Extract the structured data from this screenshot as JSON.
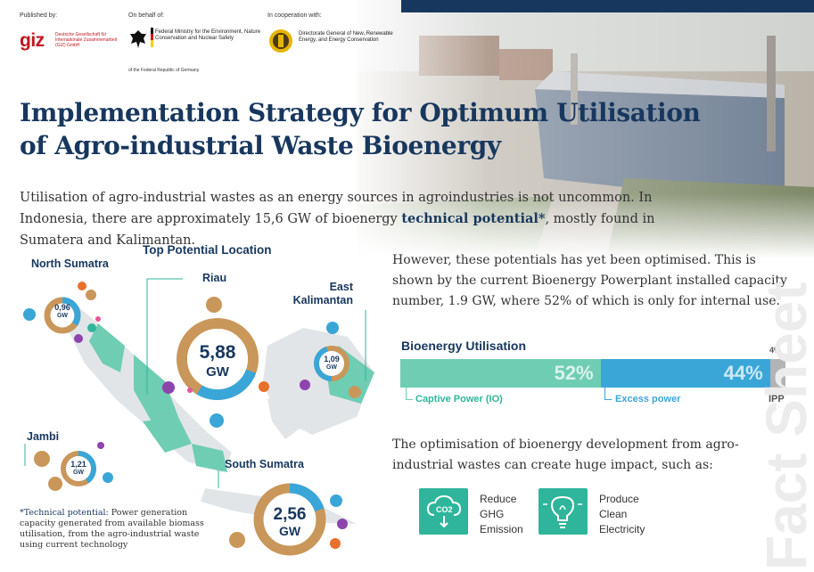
{
  "logos": {
    "published_by": "Published by:",
    "giz": "giz",
    "giz_sub": "Deutsche Gesellschaft für Internationale Zusammenarbeit (GIZ) GmbH",
    "on_behalf_of": "On behalf of:",
    "ministry": "Federal Ministry for the Environment, Nature Conservation and Nuclear Safety",
    "ministry_foot": "of the Federal Republic of Germany",
    "cooperation": "In cooperation with:",
    "esdm": "Directorate General of New, Renewable Energy, and Energy Conservation"
  },
  "title_line1": "Implementation Strategy for Optimum Utilisation",
  "title_line2": "of Agro-industrial Waste Bioenergy",
  "intro": {
    "before": "Utilisation of agro-industrial wastes as an energy sources in agroindustries is not uncommon. In Indonesia, there are approximately 15,6 GW of bioenergy ",
    "highlight": "technical potential*",
    "after": ", mostly found in Sumatera and Kalimantan."
  },
  "map": {
    "title": "Top Potential Location",
    "locations": [
      {
        "name": "North Sumatra",
        "value": "0,96",
        "unit": "GW",
        "share": 0.35
      },
      {
        "name": "Riau",
        "value": "5,88",
        "unit": "GW",
        "share": 0.72
      },
      {
        "name": "East Kalimantan",
        "value": "1,09",
        "unit": "GW",
        "share": 0.45
      },
      {
        "name": "Jambi",
        "value": "1,21",
        "unit": "GW",
        "share": 0.4
      },
      {
        "name": "South Sumatra",
        "value": "2,56",
        "unit": "GW",
        "share": 0.8
      }
    ]
  },
  "footnote": {
    "head": "*Technical potential:",
    "body": " Power generation capacity generated from available biomass utilisation, from the agro-industrial waste using current technology"
  },
  "right_text": "However, these potentials has yet been optimised. This is shown by the current Bioenergy Powerplant installed capacity number, 1.9 GW, where 52% of which is only for internal use.",
  "chart_data": {
    "type": "bar",
    "title": "Bioenergy Utilisation",
    "categories": [
      "Captive Power (IO)",
      "Excess power",
      "IPP"
    ],
    "values": [
      52,
      44,
      4
    ],
    "labels": [
      "52%",
      "44%",
      "4%"
    ],
    "colors": [
      "#6fcdb3",
      "#3aa6d8",
      "#b3b3b3"
    ]
  },
  "opt_text": "The optimisation of bioenergy development from agro-industrial wastes can create huge impact, such as:",
  "impacts": [
    {
      "label1": "Reduce",
      "label2": "GHG",
      "label3": "Emission",
      "icon": "co2-icon"
    },
    {
      "label1": "Produce",
      "label2": "Clean",
      "label3": "Electricity",
      "icon": "lightbulb-icon"
    }
  ],
  "watermark": "Fact Sheet"
}
